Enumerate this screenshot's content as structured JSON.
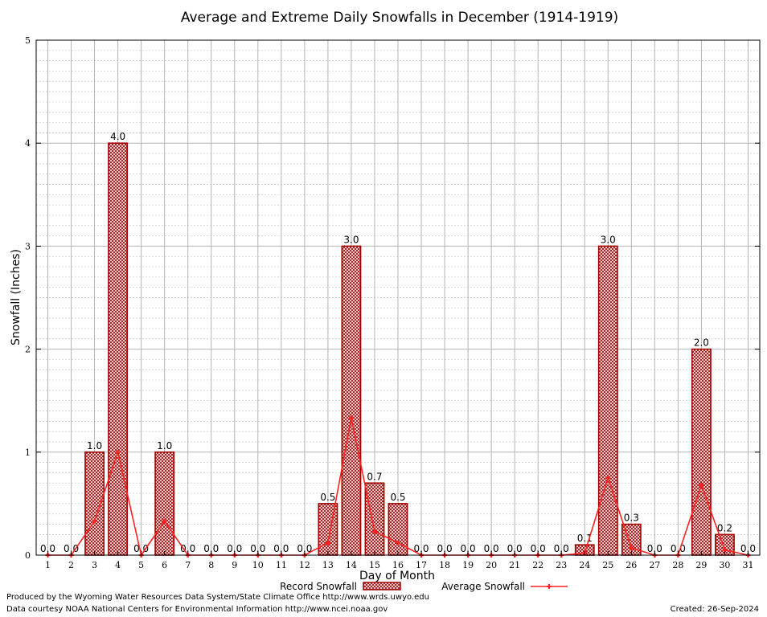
{
  "chart_data": {
    "type": "bar",
    "title": "Average and Extreme Daily Snowfalls in December (1914-1919)",
    "xlabel": "Day of Month",
    "ylabel": "Snowfall (Inches)",
    "ylim": [
      0,
      5
    ],
    "yticks": [
      "0",
      "1",
      "2",
      "3",
      "4",
      "5"
    ],
    "grid": true,
    "legend_position": "bottom",
    "categories": [
      "1",
      "2",
      "3",
      "4",
      "5",
      "6",
      "7",
      "8",
      "9",
      "10",
      "11",
      "12",
      "13",
      "14",
      "15",
      "16",
      "17",
      "18",
      "19",
      "20",
      "21",
      "22",
      "23",
      "24",
      "25",
      "26",
      "27",
      "28",
      "29",
      "30",
      "31"
    ],
    "series": [
      {
        "name": "Record Snowfall",
        "kind": "bar",
        "color": "#a00000",
        "values": [
          0.0,
          0.0,
          1.0,
          4.0,
          0.0,
          1.0,
          0.0,
          0.0,
          0.0,
          0.0,
          0.0,
          0.0,
          0.5,
          3.0,
          0.7,
          0.5,
          0.0,
          0.0,
          0.0,
          0.0,
          0.0,
          0.0,
          0.0,
          0.1,
          3.0,
          0.3,
          0.0,
          0.0,
          2.0,
          0.2,
          0.0
        ],
        "labels": [
          "0.0",
          "0.0",
          "1.0",
          "4.0",
          "0.0",
          "1.0",
          "0.0",
          "0.0",
          "0.0",
          "0.0",
          "0.0",
          "0.0",
          "0.5",
          "3.0",
          "0.7",
          "0.5",
          "0.0",
          "0.0",
          "0.0",
          "0.0",
          "0.0",
          "0.0",
          "0.0",
          "0.1",
          "3.0",
          "0.3",
          "0.0",
          "0.0",
          "2.0",
          "0.2",
          "0.0"
        ]
      },
      {
        "name": "Average Snowfall",
        "kind": "line",
        "color": "#ff2020",
        "values": [
          0,
          0,
          0.33,
          1.0,
          0,
          0.33,
          0,
          0,
          0,
          0,
          0,
          0,
          0.12,
          1.33,
          0.23,
          0.12,
          0,
          0,
          0,
          0,
          0,
          0,
          0,
          0.02,
          0.75,
          0.07,
          0,
          0,
          0.68,
          0.05,
          0
        ]
      }
    ]
  },
  "footer": {
    "produced_by": "Produced by the Wyoming Water Resources Data System/State Climate Office http://www.wrds.uwyo.edu",
    "courtesy": "Data courtesy NOAA National Centers for Environmental Information http://www.ncei.noaa.gov",
    "created": "Created:  26-Sep-2024"
  }
}
